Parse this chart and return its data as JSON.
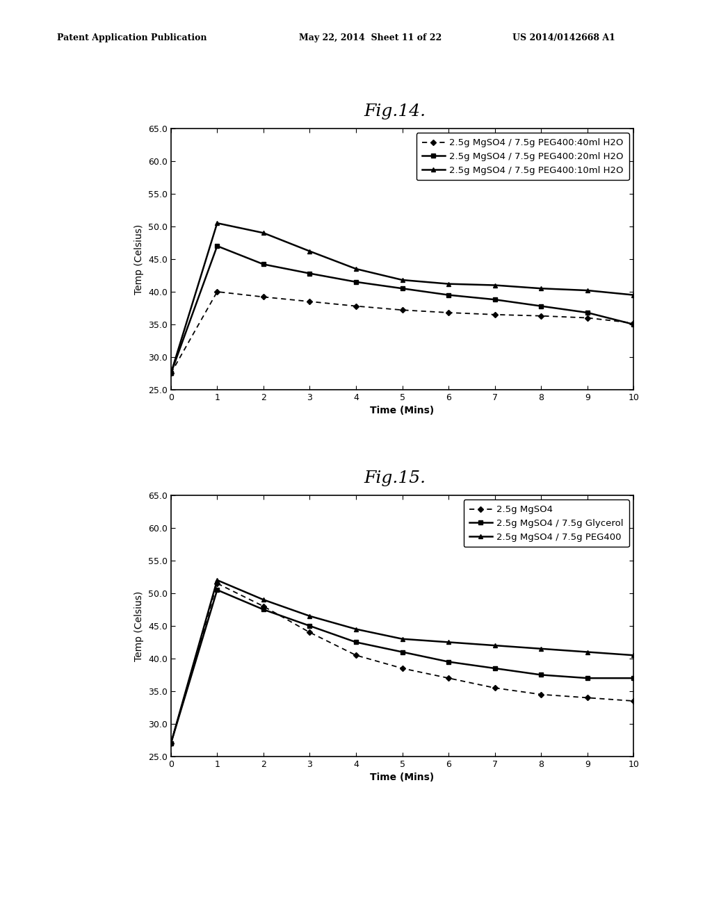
{
  "fig14": {
    "title": "Fig.14.",
    "xlabel": "Time (Mins)",
    "ylabel": "Temp (Celsius)",
    "ylim": [
      25.0,
      65.0
    ],
    "xlim": [
      0,
      10
    ],
    "yticks": [
      25.0,
      30.0,
      35.0,
      40.0,
      45.0,
      50.0,
      55.0,
      60.0,
      65.0
    ],
    "xticks": [
      0,
      1,
      2,
      3,
      4,
      5,
      6,
      7,
      8,
      9,
      10
    ],
    "series": [
      {
        "label": "2.5g MgSO4 / 7.5g PEG400:40ml H2O",
        "x": [
          0,
          1,
          2,
          3,
          4,
          5,
          6,
          7,
          8,
          9,
          10
        ],
        "y": [
          27.5,
          40.0,
          39.2,
          38.5,
          37.8,
          37.2,
          36.8,
          36.5,
          36.3,
          36.0,
          35.2
        ],
        "color": "#000000",
        "linestyle": "--",
        "marker": "D",
        "markersize": 4,
        "linewidth": 1.3,
        "dashes": [
          4,
          3
        ]
      },
      {
        "label": "2.5g MgSO4 / 7.5g PEG400:20ml H2O",
        "x": [
          0,
          1,
          2,
          3,
          4,
          5,
          6,
          7,
          8,
          9,
          10
        ],
        "y": [
          27.5,
          47.0,
          44.2,
          42.8,
          41.5,
          40.5,
          39.5,
          38.8,
          37.8,
          36.8,
          35.0
        ],
        "color": "#000000",
        "linestyle": "-",
        "marker": "s",
        "markersize": 4,
        "linewidth": 1.8
      },
      {
        "label": "2.5g MgSO4 / 7.5g PEG400:10ml H2O",
        "x": [
          0,
          1,
          2,
          3,
          4,
          5,
          6,
          7,
          8,
          9,
          10
        ],
        "y": [
          27.5,
          50.5,
          49.0,
          46.2,
          43.5,
          41.8,
          41.2,
          41.0,
          40.5,
          40.2,
          39.5
        ],
        "color": "#000000",
        "linestyle": "-",
        "marker": "^",
        "markersize": 5,
        "linewidth": 1.8
      }
    ]
  },
  "fig15": {
    "title": "Fig.15.",
    "xlabel": "Time (Mins)",
    "ylabel": "Temp (Celsius)",
    "ylim": [
      25.0,
      65.0
    ],
    "xlim": [
      0,
      10
    ],
    "yticks": [
      25.0,
      30.0,
      35.0,
      40.0,
      45.0,
      50.0,
      55.0,
      60.0,
      65.0
    ],
    "xticks": [
      0,
      1,
      2,
      3,
      4,
      5,
      6,
      7,
      8,
      9,
      10
    ],
    "series": [
      {
        "label": "2.5g MgSO4",
        "x": [
          0,
          1,
          2,
          3,
          4,
          5,
          6,
          7,
          8,
          9,
          10
        ],
        "y": [
          27.0,
          51.5,
          48.0,
          44.0,
          40.5,
          38.5,
          37.0,
          35.5,
          34.5,
          34.0,
          33.5
        ],
        "color": "#000000",
        "linestyle": "--",
        "marker": "D",
        "markersize": 4,
        "linewidth": 1.3,
        "dashes": [
          4,
          3
        ]
      },
      {
        "label": "2.5g MgSO4 / 7.5g Glycerol",
        "x": [
          0,
          1,
          2,
          3,
          4,
          5,
          6,
          7,
          8,
          9,
          10
        ],
        "y": [
          27.0,
          50.5,
          47.5,
          45.0,
          42.5,
          41.0,
          39.5,
          38.5,
          37.5,
          37.0,
          37.0
        ],
        "color": "#000000",
        "linestyle": "-",
        "marker": "s",
        "markersize": 4,
        "linewidth": 1.8
      },
      {
        "label": "2.5g MgSO4 / 7.5g PEG400",
        "x": [
          0,
          1,
          2,
          3,
          4,
          5,
          6,
          7,
          8,
          9,
          10
        ],
        "y": [
          27.0,
          52.0,
          49.0,
          46.5,
          44.5,
          43.0,
          42.5,
          42.0,
          41.5,
          41.0,
          40.5
        ],
        "color": "#000000",
        "linestyle": "-",
        "marker": "^",
        "markersize": 5,
        "linewidth": 1.8
      }
    ]
  },
  "header_left": "Patent Application Publication",
  "header_mid": "May 22, 2014  Sheet 11 of 22",
  "header_right": "US 2014/0142668 A1",
  "bg_color": "#ffffff",
  "text_color": "#000000",
  "legend_fontsize": 9.5,
  "axis_fontsize": 10,
  "title_fontsize": 18,
  "tick_fontsize": 9
}
